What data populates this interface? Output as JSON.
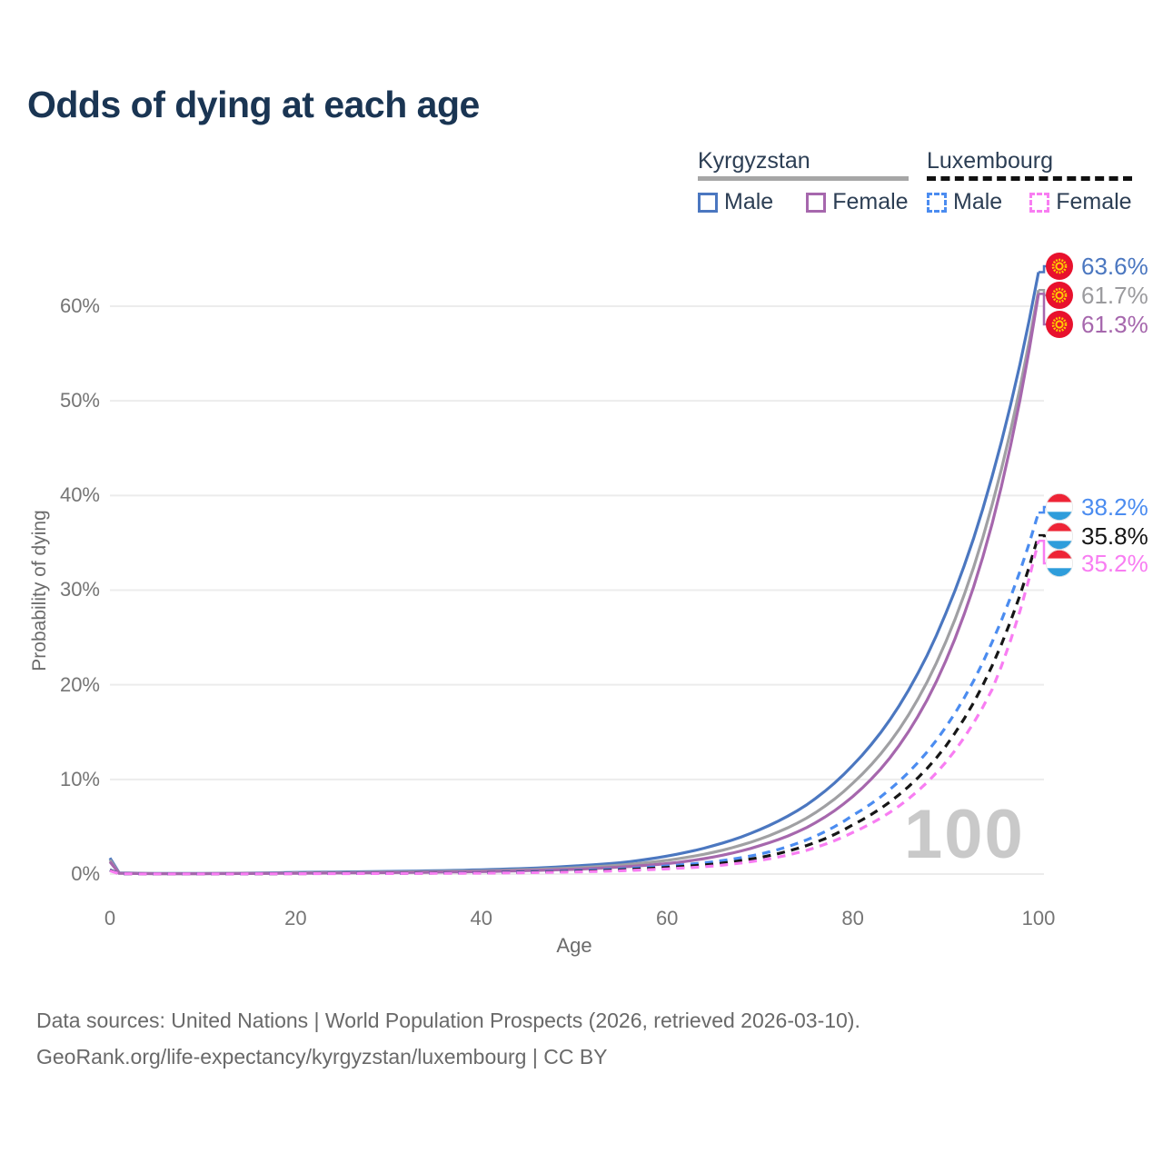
{
  "title": "Odds of dying at each age",
  "watermark_age": "100",
  "legend": {
    "groups": [
      {
        "country": "Kyrgyzstan",
        "line_style": "solid",
        "underline_color": "#a6a6a6",
        "items": [
          {
            "label": "Male",
            "color": "#4b77c0",
            "dashed": false
          },
          {
            "label": "Female",
            "color": "#a667ad",
            "dashed": false
          }
        ]
      },
      {
        "country": "Luxembourg",
        "line_style": "dashed",
        "underline_color": "#111111",
        "items": [
          {
            "label": "Male",
            "color": "#4b8cf0",
            "dashed": true
          },
          {
            "label": "Female",
            "color": "#f87df2",
            "dashed": true
          }
        ]
      }
    ]
  },
  "chart_data": {
    "type": "line",
    "title": "Odds of dying at each age",
    "xlabel": "Age",
    "ylabel": "Probability of dying",
    "x_ticks": [
      0,
      20,
      40,
      60,
      80,
      100
    ],
    "y_tick_labels": [
      "0%",
      "10%",
      "20%",
      "30%",
      "40%",
      "50%",
      "60%"
    ],
    "y_ticks_percent": [
      0,
      10,
      20,
      30,
      40,
      50,
      60
    ],
    "xlim": [
      0,
      100
    ],
    "ylim_percent": [
      0,
      65
    ],
    "grid": "horizontal",
    "legend_position": "top-right",
    "series": [
      {
        "name": "Kyrgyzstan Male",
        "color": "#4b77c0",
        "dashed": false,
        "end_value_percent": 63.6,
        "points_age_percent": [
          [
            0,
            1.7
          ],
          [
            1,
            0.12
          ],
          [
            5,
            0.06
          ],
          [
            10,
            0.06
          ],
          [
            15,
            0.1
          ],
          [
            20,
            0.17
          ],
          [
            25,
            0.22
          ],
          [
            30,
            0.28
          ],
          [
            35,
            0.35
          ],
          [
            40,
            0.45
          ],
          [
            45,
            0.6
          ],
          [
            50,
            0.85
          ],
          [
            55,
            1.2
          ],
          [
            60,
            1.9
          ],
          [
            65,
            3.0
          ],
          [
            70,
            4.7
          ],
          [
            75,
            7.3
          ],
          [
            80,
            11.5
          ],
          [
            85,
            17.8
          ],
          [
            90,
            27.5
          ],
          [
            95,
            42
          ],
          [
            100,
            63.6
          ]
        ]
      },
      {
        "name": "Kyrgyzstan Both sexes",
        "color": "#a0a0a3",
        "dashed": false,
        "end_value_percent": 61.7,
        "points_age_percent": [
          [
            0,
            1.5
          ],
          [
            1,
            0.1
          ],
          [
            5,
            0.05
          ],
          [
            10,
            0.05
          ],
          [
            15,
            0.08
          ],
          [
            20,
            0.13
          ],
          [
            30,
            0.21
          ],
          [
            40,
            0.34
          ],
          [
            50,
            0.65
          ],
          [
            55,
            0.95
          ],
          [
            60,
            1.45
          ],
          [
            65,
            2.3
          ],
          [
            70,
            3.7
          ],
          [
            75,
            5.9
          ],
          [
            80,
            9.6
          ],
          [
            85,
            15.3
          ],
          [
            90,
            24.5
          ],
          [
            95,
            39
          ],
          [
            100,
            61.7
          ]
        ]
      },
      {
        "name": "Kyrgyzstan Female",
        "color": "#a667ad",
        "dashed": false,
        "end_value_percent": 61.3,
        "points_age_percent": [
          [
            0,
            1.3
          ],
          [
            1,
            0.09
          ],
          [
            5,
            0.04
          ],
          [
            10,
            0.04
          ],
          [
            15,
            0.06
          ],
          [
            20,
            0.09
          ],
          [
            30,
            0.15
          ],
          [
            40,
            0.26
          ],
          [
            50,
            0.5
          ],
          [
            55,
            0.75
          ],
          [
            60,
            1.1
          ],
          [
            65,
            1.8
          ],
          [
            70,
            3.0
          ],
          [
            75,
            4.9
          ],
          [
            80,
            8.2
          ],
          [
            85,
            13.6
          ],
          [
            90,
            22.5
          ],
          [
            95,
            37
          ],
          [
            100,
            61.3
          ]
        ]
      },
      {
        "name": "Luxembourg Male",
        "color": "#4b8cf0",
        "dashed": true,
        "end_value_percent": 38.2,
        "points_age_percent": [
          [
            0,
            0.45
          ],
          [
            1,
            0.04
          ],
          [
            5,
            0.02
          ],
          [
            10,
            0.02
          ],
          [
            15,
            0.04
          ],
          [
            20,
            0.06
          ],
          [
            30,
            0.09
          ],
          [
            40,
            0.15
          ],
          [
            50,
            0.35
          ],
          [
            60,
            0.85
          ],
          [
            65,
            1.3
          ],
          [
            70,
            2.1
          ],
          [
            75,
            3.6
          ],
          [
            80,
            6.2
          ],
          [
            85,
            9.8
          ],
          [
            90,
            15.5
          ],
          [
            95,
            24.5
          ],
          [
            100,
            38.2
          ]
        ]
      },
      {
        "name": "Luxembourg Both sexes",
        "color": "#161616",
        "dashed": true,
        "end_value_percent": 35.8,
        "points_age_percent": [
          [
            0,
            0.4
          ],
          [
            1,
            0.035
          ],
          [
            5,
            0.018
          ],
          [
            10,
            0.018
          ],
          [
            15,
            0.03
          ],
          [
            20,
            0.05
          ],
          [
            30,
            0.08
          ],
          [
            40,
            0.13
          ],
          [
            50,
            0.28
          ],
          [
            60,
            0.7
          ],
          [
            65,
            1.05
          ],
          [
            70,
            1.75
          ],
          [
            75,
            3.0
          ],
          [
            80,
            5.2
          ],
          [
            85,
            8.4
          ],
          [
            90,
            13.5
          ],
          [
            95,
            22
          ],
          [
            100,
            35.8
          ]
        ]
      },
      {
        "name": "Luxembourg Female",
        "color": "#f87df2",
        "dashed": true,
        "end_value_percent": 35.2,
        "points_age_percent": [
          [
            0,
            0.35
          ],
          [
            1,
            0.03
          ],
          [
            5,
            0.015
          ],
          [
            10,
            0.015
          ],
          [
            15,
            0.025
          ],
          [
            20,
            0.04
          ],
          [
            30,
            0.06
          ],
          [
            40,
            0.1
          ],
          [
            50,
            0.22
          ],
          [
            60,
            0.55
          ],
          [
            65,
            0.85
          ],
          [
            70,
            1.45
          ],
          [
            75,
            2.5
          ],
          [
            80,
            4.4
          ],
          [
            85,
            7.2
          ],
          [
            90,
            11.8
          ],
          [
            95,
            19.5
          ],
          [
            100,
            35.2
          ]
        ]
      }
    ],
    "end_labels": [
      {
        "text": "63.6%",
        "color": "#4b77c0",
        "flag": "kyrgyzstan",
        "series": "Kyrgyzstan Male"
      },
      {
        "text": "61.7%",
        "color": "#9b9b9e",
        "flag": "kyrgyzstan",
        "series": "Kyrgyzstan Both sexes"
      },
      {
        "text": "61.3%",
        "color": "#a667ad",
        "flag": "kyrgyzstan",
        "series": "Kyrgyzstan Female"
      },
      {
        "text": "38.2%",
        "color": "#4b8cf0",
        "flag": "luxembourg",
        "series": "Luxembourg Male"
      },
      {
        "text": "35.8%",
        "color": "#161616",
        "flag": "luxembourg",
        "series": "Luxembourg Both sexes"
      },
      {
        "text": "35.2%",
        "color": "#f87df2",
        "flag": "luxembourg",
        "series": "Luxembourg Female"
      }
    ],
    "flag_colors": {
      "kyrgyzstan": {
        "field": "#e8112d",
        "sun": "#ffcc00"
      },
      "luxembourg": {
        "top": "#ee2436",
        "middle": "#ffffff",
        "bottom": "#2e9ddb"
      }
    }
  },
  "footer": {
    "line1": "Data sources: United Nations | World Population Prospects (2026, retrieved 2026-03-10).",
    "line2": "GeoRank.org/life-expectancy/kyrgyzstan/luxembourg | CC BY"
  }
}
